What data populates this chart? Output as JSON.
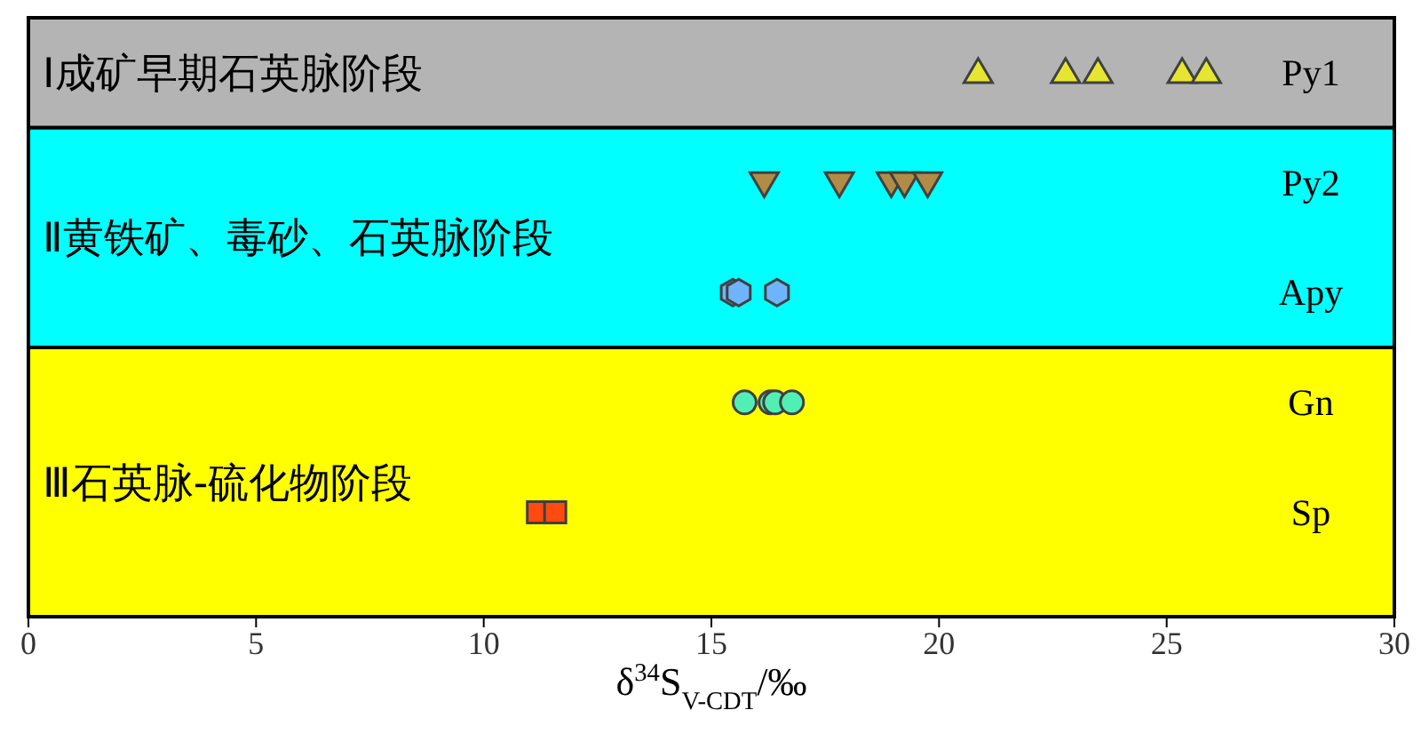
{
  "chart_data": {
    "type": "scatter",
    "orientation": "horizontal",
    "xlabel": "δ$^{34}$S$_{V-CDT}$/‰",
    "categories": [
      "Py1",
      "Py2",
      "Apy",
      "Gn",
      "Sp"
    ],
    "xlim": [
      0,
      30
    ],
    "xticks": [
      0,
      5,
      10,
      15,
      20,
      25,
      30
    ],
    "bands": [
      {
        "axis": "y",
        "from": "Py1",
        "to": "Py1",
        "label": "Ⅰ成矿早期石英脉阶段",
        "color": "#b4b4b4"
      },
      {
        "axis": "y",
        "from": "Py2",
        "to": "Apy",
        "label": "Ⅱ黄铁矿、毒砂、石英脉阶段",
        "color": "#00ffff"
      },
      {
        "axis": "y",
        "from": "Gn",
        "to": "Sp",
        "label": "Ⅲ石英脉-硫化物阶段",
        "color": "#ffff00"
      }
    ],
    "series": [
      {
        "color": "#e6e632",
        "marker": "triangle",
        "x": [
          "Py1",
          "Py1",
          "Py1",
          "Py1",
          "Py1"
        ],
        "values": [
          20.86,
          22.78,
          23.49,
          25.34,
          25.87
        ]
      },
      {
        "color": "#b08c46",
        "marker": "triangle-down",
        "x": [
          "Py2",
          "Py2",
          "Py2",
          "Py2",
          "Py2"
        ],
        "values": [
          16.16,
          17.81,
          18.95,
          19.24,
          19.75
        ]
      },
      {
        "color": "#6eb4ff",
        "x": [
          "Apy",
          "Apy",
          "Apy"
        ],
        "values": [
          15.47,
          15.6,
          16.44
        ]
      },
      {
        "color": "#50f0b4",
        "marker": "circle",
        "x": [
          "Gn",
          "Gn",
          "Gn",
          "Gn"
        ],
        "values": [
          15.73,
          16.3,
          16.4,
          16.77
        ]
      },
      {
        "color": "#ff4a10",
        "marker": "square",
        "x": [
          "Sp",
          "Sp"
        ],
        "values": [
          11.19,
          11.57
        ]
      }
    ]
  }
}
